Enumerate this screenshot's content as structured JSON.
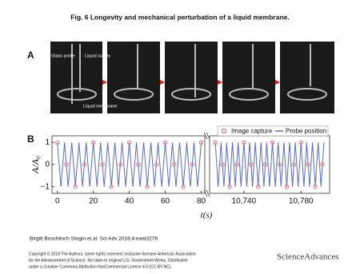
{
  "figure": {
    "title": "Fig. 6 Longevity and mechanical perturbation of a liquid membrane.",
    "panels": [
      "A",
      "B"
    ],
    "photo_labels": [
      "Glass probe",
      "Liquid supply",
      "Liquid membrane"
    ],
    "citation": "Birgitt Boschitsch Stogin et al. Sci Adv 2018;4:eaat3276",
    "copyright": [
      "Copyright © 2018 The Authors, some rights reserved; exclusive licensee American Association",
      "for the Advancement of Science. No claim to original U.S. Government Works. Distributed",
      "under a Creative Commons Attribution NonCommercial License 4.0 (CC BY-NC)."
    ],
    "logo": "ScienceAdvances"
  },
  "chart_data": [
    {
      "type": "line",
      "ylabel": "A/A₀",
      "xlim": [
        -3,
        82
      ],
      "ylim": [
        -1.3,
        1.3
      ],
      "xticks": [
        0,
        20,
        40,
        60,
        80
      ],
      "yticks": [
        {
          "value": -1,
          "label": "−1"
        },
        0,
        1
      ],
      "series": [
        {
          "name": "Image capture",
          "color": "#e0707a",
          "marker": "circle",
          "x": [
            0,
            5,
            10,
            15,
            20,
            25,
            30,
            35,
            40,
            45,
            50,
            55,
            60,
            65,
            70,
            75,
            80
          ],
          "values": [
            1,
            0,
            -1,
            0,
            1,
            0,
            -1,
            0,
            1,
            0,
            -1,
            0,
            1,
            0,
            -1,
            0,
            1
          ]
        },
        {
          "name": "Probe position",
          "color": "#5a6cc8",
          "marker": "line",
          "x": [
            0,
            2,
            4,
            6,
            8,
            10,
            12,
            14,
            16,
            18,
            20,
            22,
            24,
            26,
            28,
            30,
            32,
            34,
            36,
            38,
            40,
            42,
            44,
            46,
            48,
            50,
            52,
            54,
            56,
            58,
            60,
            62,
            64,
            66,
            68,
            70,
            72,
            74,
            76,
            78,
            80
          ],
          "values": [
            1,
            -1,
            1,
            -1,
            1,
            -1,
            1,
            -1,
            1,
            -1,
            1,
            -1,
            1,
            -1,
            1,
            -1,
            1,
            -1,
            1,
            -1,
            1,
            -1,
            1,
            -1,
            1,
            -1,
            1,
            -1,
            1,
            -1,
            1,
            -1,
            1,
            -1,
            1,
            -1,
            1,
            -1,
            1,
            -1,
            1
          ]
        }
      ]
    },
    {
      "type": "line",
      "xlabel": "t(s)",
      "xlim": [
        10716,
        10800
      ],
      "ylim": [
        -1.3,
        1.3
      ],
      "xticks": [
        {
          "value": 10740,
          "label": "10,740"
        },
        {
          "value": 10780,
          "label": "10,780"
        }
      ],
      "legend": "top-right",
      "series": [
        {
          "name": "Image capture",
          "color": "#e0707a",
          "marker": "circle",
          "x": [
            10720,
            10725,
            10730,
            10735,
            10740,
            10745,
            10750,
            10755,
            10760,
            10765,
            10770,
            10775,
            10780,
            10785,
            10790,
            10795
          ],
          "values": [
            1,
            0,
            -1,
            0,
            1,
            0,
            -1,
            0,
            1,
            0,
            -1,
            0,
            1,
            0,
            -1,
            0
          ]
        },
        {
          "name": "Probe position",
          "color": "#5a6cc8",
          "marker": "line",
          "x": [
            10720,
            10722,
            10724,
            10726,
            10728,
            10730,
            10732,
            10734,
            10736,
            10738,
            10740,
            10742,
            10744,
            10746,
            10748,
            10750,
            10752,
            10754,
            10756,
            10758,
            10760,
            10762,
            10764,
            10766,
            10768,
            10770,
            10772,
            10774,
            10776,
            10778,
            10780,
            10782,
            10784,
            10786,
            10788,
            10790,
            10792,
            10794,
            10796
          ],
          "values": [
            1,
            -1,
            1,
            -1,
            1,
            -1,
            1,
            -1,
            1,
            -1,
            1,
            -1,
            1,
            -1,
            1,
            -1,
            1,
            -1,
            1,
            -1,
            1,
            -1,
            1,
            -1,
            1,
            -1,
            1,
            -1,
            1,
            -1,
            1,
            -1,
            1,
            -1,
            1,
            -1,
            1,
            -1,
            1
          ]
        }
      ]
    }
  ]
}
